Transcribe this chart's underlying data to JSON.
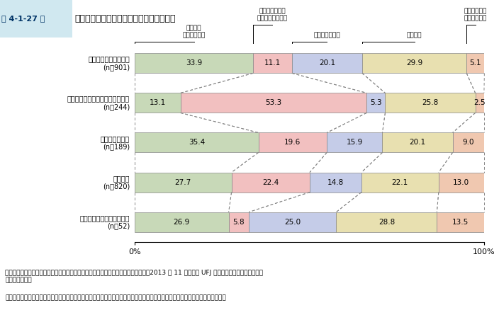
{
  "title": "第 4-1-27 図　　最も連携の度合いの強い中小企業支援機関",
  "rows": [
    {
      "label": "商工会・商工会議所等\n(n＝901)",
      "values": [
        33.9,
        11.1,
        20.1,
        29.9,
        5.1
      ]
    },
    {
      "label": "税・法務関係の中小企業支援機関\n(n＝244)",
      "values": [
        13.1,
        53.3,
        5.3,
        25.8,
        2.5
      ]
    },
    {
      "label": "コンサルタント\n(n＝189)",
      "values": [
        35.4,
        19.6,
        15.9,
        20.1,
        9.0
      ]
    },
    {
      "label": "金融機関\n(n＝820)",
      "values": [
        27.7,
        22.4,
        14.8,
        22.1,
        13.0
      ]
    },
    {
      "label": "その他の中小企業支援機関\n(n＝52)",
      "values": [
        26.9,
        5.8,
        25.0,
        28.8,
        13.5
      ]
    }
  ],
  "colors": [
    "#c8d9b8",
    "#f2c0c0",
    "#c5cce8",
    "#e8e0b0",
    "#f0c8b0"
  ],
  "segment_labels": [
    "商工会・\n商工会議所等",
    "税・法務関係の\n中小企業支援機関",
    "コンサルタント",
    "金融機関",
    "その他の中小\n企業支援機関"
  ],
  "source_text": "資料：中小企業庁委託「中小企業支援機関の連携状況と施策認知度に関する調査」（2013 年 11 月、三菱 UFJ リサーチ＆コンサルティング\n　　　（株））",
  "note_text": "（注）　連携状況の強い中小企業支援機関として１位から３位を回答してもらった中で、１位に回答されたものを集計している。",
  "bar_height": 0.5,
  "figsize": [
    7.04,
    4.38
  ],
  "dpi": 100
}
